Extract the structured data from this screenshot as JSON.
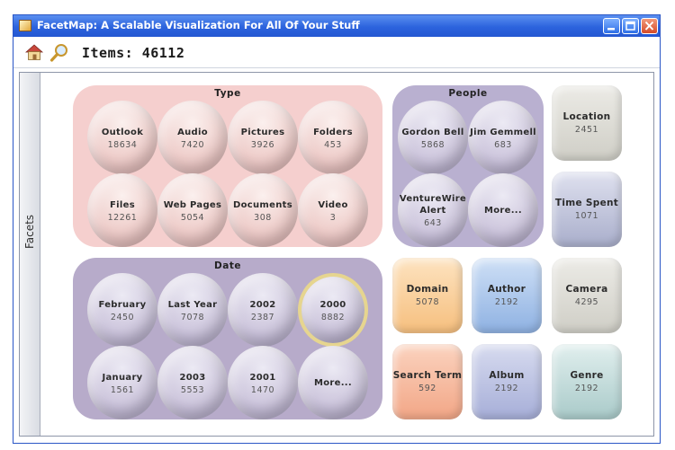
{
  "window": {
    "title": "FacetMap: A Scalable Visualization For All Of Your Stuff"
  },
  "toolbar": {
    "items_label": "Items: 46112"
  },
  "sidebar": {
    "label": "Facets"
  },
  "groups": {
    "type": {
      "title": "Type",
      "items": [
        {
          "label": "Outlook",
          "count": "18634"
        },
        {
          "label": "Audio",
          "count": "7420"
        },
        {
          "label": "Pictures",
          "count": "3926"
        },
        {
          "label": "Folders",
          "count": "453"
        },
        {
          "label": "Files",
          "count": "12261"
        },
        {
          "label": "Web Pages",
          "count": "5054"
        },
        {
          "label": "Documents",
          "count": "308"
        },
        {
          "label": "Video",
          "count": "3"
        }
      ]
    },
    "people": {
      "title": "People",
      "items": [
        {
          "label": "Gordon Bell",
          "count": "5868"
        },
        {
          "label": "Jim Gemmell",
          "count": "683"
        },
        {
          "label": "VentureWire\nAlert",
          "count": "643"
        },
        {
          "label": "More...",
          "count": ""
        }
      ]
    },
    "date": {
      "title": "Date",
      "items": [
        {
          "label": "February",
          "count": "2450"
        },
        {
          "label": "Last Year",
          "count": "7078"
        },
        {
          "label": "2002",
          "count": "2387"
        },
        {
          "label": "2000",
          "count": "8882"
        },
        {
          "label": "January",
          "count": "1561"
        },
        {
          "label": "2003",
          "count": "5553"
        },
        {
          "label": "2001",
          "count": "1470"
        },
        {
          "label": "More...",
          "count": ""
        }
      ]
    }
  },
  "tiles": [
    {
      "label": "Location",
      "count": "2451"
    },
    {
      "label": "Time Spent",
      "count": "1071"
    },
    {
      "label": "Domain",
      "count": "5078"
    },
    {
      "label": "Author",
      "count": "2192"
    },
    {
      "label": "Camera",
      "count": "4295"
    },
    {
      "label": "Search Term",
      "count": "592"
    },
    {
      "label": "Album",
      "count": "2192"
    },
    {
      "label": "Genre",
      "count": "2192"
    }
  ],
  "colors": {
    "titlebar": "#2c63dd",
    "type_group": "#f5cfce",
    "people_group": "#b9b0d0",
    "date_group": "#b7abca",
    "highlight_ring": "#e6d58f"
  },
  "icons": {
    "window_app": "app-icon",
    "home": "home-icon",
    "search": "search-icon",
    "minimize": "minimize-icon",
    "maximize": "maximize-icon",
    "close": "close-icon"
  }
}
